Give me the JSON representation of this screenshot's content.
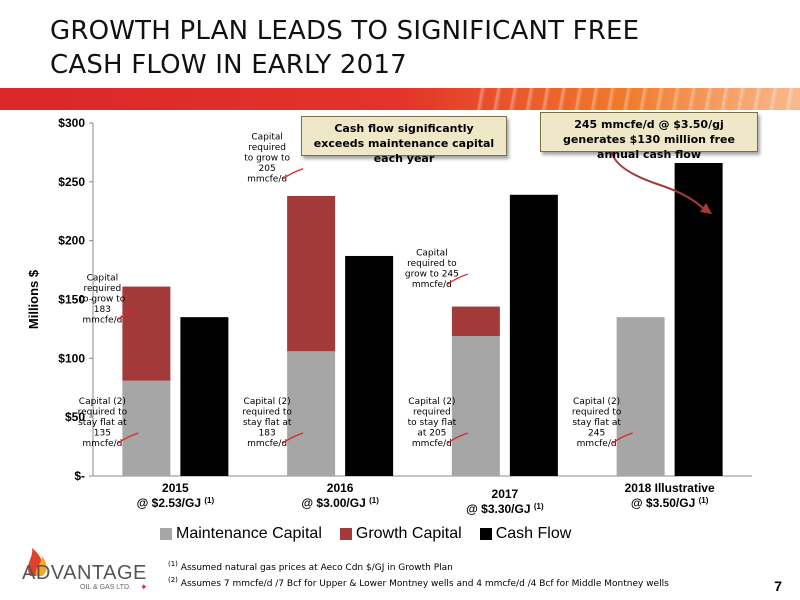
{
  "title": "GROWTH PLAN LEADS TO SIGNIFICANT FREE CASH FLOW IN EARLY 2017",
  "callouts": {
    "center": "Cash flow significantly exceeds maintenance capital each year",
    "right": "245 mmcfe/d @ $3.50/gj generates $130 million free annual cash flow"
  },
  "annotations": [
    {
      "group": 0,
      "kind": "growth",
      "lines": [
        "Capital",
        "required",
        "to grow to",
        "183",
        "mmcfe/d"
      ]
    },
    {
      "group": 0,
      "kind": "maintenance",
      "lines": [
        "Capital (2)",
        "required to",
        "stay flat at",
        "135",
        "mmcfe/d"
      ]
    },
    {
      "group": 1,
      "kind": "growth",
      "lines": [
        "Capital",
        "required",
        "to grow to",
        "205",
        "mmcfe/d"
      ]
    },
    {
      "group": 1,
      "kind": "maintenance",
      "lines": [
        "Capital (2)",
        "required to",
        "stay flat at",
        "183",
        "mmcfe/d"
      ]
    },
    {
      "group": 2,
      "kind": "growth",
      "lines": [
        "Capital",
        "required to",
        "grow to 245",
        "mmcfe/d"
      ]
    },
    {
      "group": 2,
      "kind": "maintenance",
      "lines": [
        "Capital (2)",
        "required",
        "to stay flat",
        "at 205",
        "mmcfe/d"
      ]
    },
    {
      "group": 3,
      "kind": "maintenance",
      "lines": [
        "Capital (2)",
        "required to",
        "stay flat at",
        "245",
        "mmcfe/d"
      ]
    }
  ],
  "footnotes": [
    {
      "mark": "(1)",
      "text": "Assumed natural gas prices at Aeco Cdn $/GJ in Growth Plan"
    },
    {
      "mark": "(2)",
      "text": "Assumes 7 mmcfe/d /7 Bcf for Upper & Lower  Montney wells and 4 mmcfe/d /4 Bcf for Middle Montney wells"
    }
  ],
  "logo": {
    "name": "ADVANTAGE",
    "sub": "OIL & GAS LTD."
  },
  "page_number": "7",
  "colors": {
    "maintenance": "#a6a6a6",
    "growth": "#a33a3a",
    "cashflow": "#000000",
    "callout_bg": "#eee7c8",
    "accent_red": "#d9272a"
  },
  "chart_data": {
    "type": "bar",
    "stacked_series": [
      "Maintenance Capital",
      "Growth Capital"
    ],
    "categories": [
      {
        "label": "2015",
        "price": "@ $2.53/GJ",
        "note": "(1)"
      },
      {
        "label": "2016",
        "price": "@ $3.00/GJ",
        "note": "(1)"
      },
      {
        "label": "2017",
        "price": "@ $3.30/GJ",
        "note": "(1)"
      },
      {
        "label": "2018 Illustrative",
        "price": "@ $3.50/GJ",
        "note": "(1)"
      }
    ],
    "series": [
      {
        "name": "Maintenance Capital",
        "values": [
          81,
          106,
          119,
          135
        ]
      },
      {
        "name": "Growth Capital",
        "values": [
          80,
          132,
          25,
          0
        ]
      },
      {
        "name": "Cash Flow",
        "values": [
          135,
          187,
          239,
          266
        ]
      }
    ],
    "ylabel": "Millions $",
    "ylim": [
      0,
      300
    ],
    "yticks": [
      0,
      50,
      100,
      150,
      200,
      250,
      300
    ],
    "ytick_labels": [
      "$-",
      "$50",
      "$100",
      "$150",
      "$200",
      "$250",
      "$300"
    ],
    "grid": false,
    "legend": "bottom"
  }
}
